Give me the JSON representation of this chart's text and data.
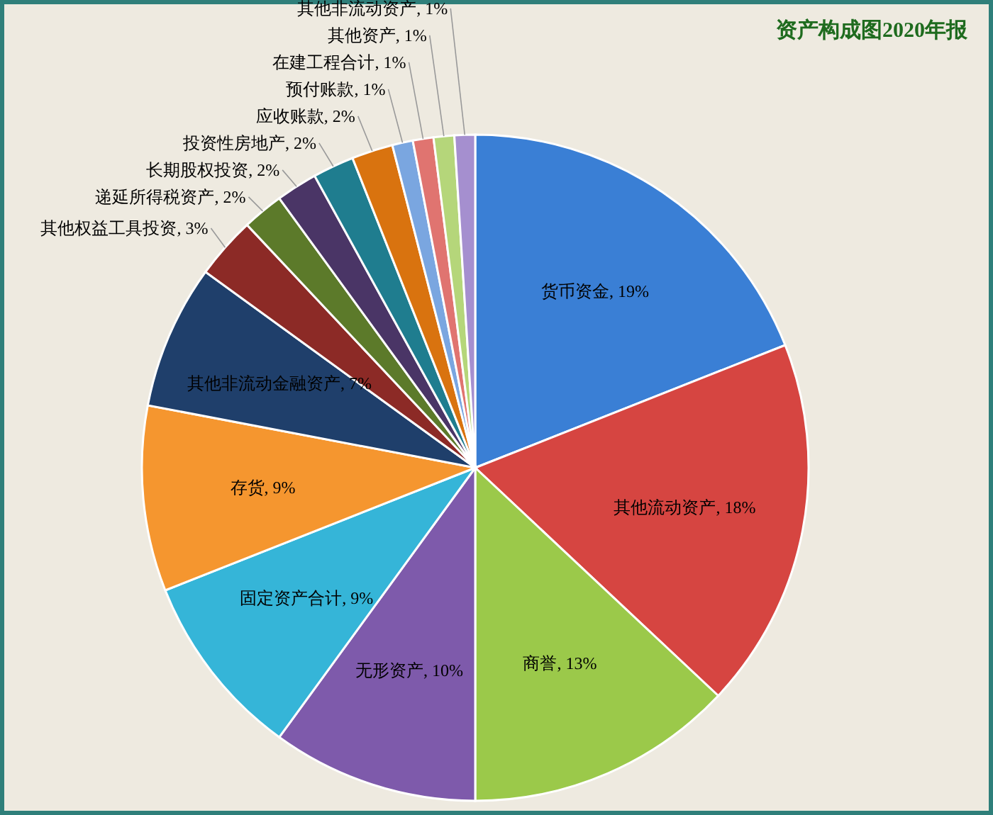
{
  "chart_data": {
    "type": "pie",
    "title": "资产构成图2020年报",
    "categories": [
      "货币资金",
      "其他流动资产",
      "商誉",
      "无形资产",
      "固定资产合计",
      "存货",
      "其他非流动金融资产",
      "其他权益工具投资",
      "递延所得税资产",
      "长期股权投资",
      "投资性房地产",
      "应收账款",
      "预付账款",
      "在建工程合计",
      "其他资产",
      "其他非流动资产"
    ],
    "values": [
      19,
      18,
      13,
      10,
      9,
      9,
      7,
      3,
      2,
      2,
      2,
      2,
      1,
      1,
      1,
      1
    ],
    "colors": [
      "#3a7fd5",
      "#d64541",
      "#9bc94a",
      "#7e5aab",
      "#35b5d8",
      "#f5962f",
      "#1f3f6b",
      "#8c2a26",
      "#5c7a2a",
      "#4a3566",
      "#1f7d8f",
      "#d9730f",
      "#7aa6e0",
      "#e07470",
      "#b5d67a",
      "#a58fcf"
    ],
    "value_labels": [
      ", 19%",
      ", 18%",
      ", 13%",
      ", 10%",
      ", 9%",
      ", 9%",
      ", 7%",
      ", 3%",
      ", 2%",
      ", 2%",
      ", 2%",
      ", 2%",
      ", 1%",
      ", 1%",
      ", 1%",
      ", 1%"
    ]
  }
}
